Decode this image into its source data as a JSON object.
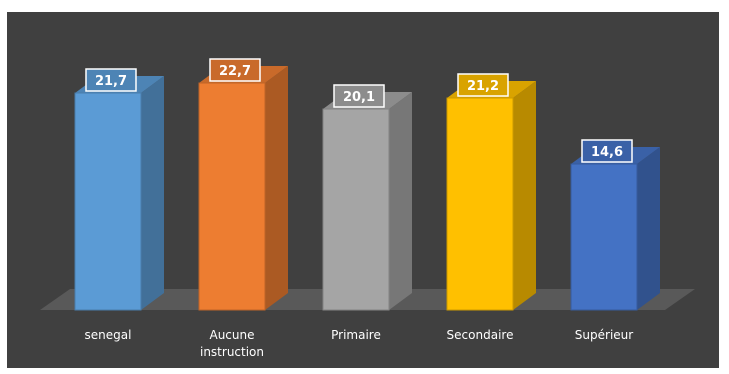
{
  "chart_data": {
    "type": "bar",
    "categories": [
      "senegal",
      "Aucune\ninstruction",
      "Primaire",
      "Secondaire",
      "Supérieur"
    ],
    "values": [
      21.7,
      22.7,
      20.1,
      21.2,
      14.6
    ],
    "data_labels": [
      "21,7",
      "22,7",
      "20,1",
      "21,2",
      "14,6"
    ],
    "ylim": [
      0,
      25
    ],
    "grid": false,
    "legend": "none",
    "colors": [
      "#5b9bd5",
      "#ed7d31",
      "#a5a5a5",
      "#ffc000",
      "#4472c4"
    ],
    "background": "#404040"
  }
}
